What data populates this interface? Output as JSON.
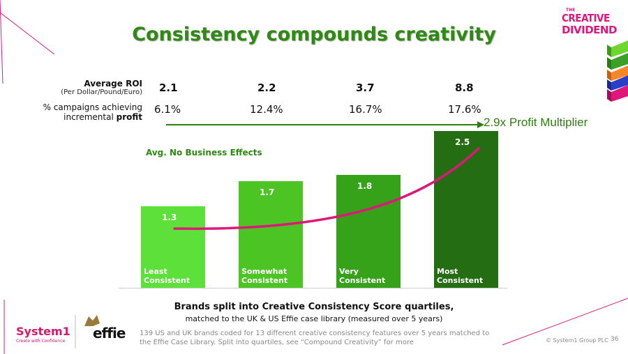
{
  "title": "Consistency compounds creativity",
  "logo": {
    "line1": "THE",
    "line2": "CREATIVE",
    "line3": "DIVIDEND"
  },
  "rows": {
    "roi_label": "Average ROI",
    "roi_sublabel": "(Per Dollar/Pound/Euro)",
    "profit_label_line1": "% campaigns achieving",
    "profit_label_line2_prefix": "incremental ",
    "profit_label_line2_bold": "profit",
    "roi_values": [
      "2.1",
      "2.2",
      "3.7",
      "8.8"
    ],
    "profit_values": [
      "6.1%",
      "12.4%",
      "16.7%",
      "17.6%"
    ]
  },
  "multiplier_label": "2.9x Profit Multiplier",
  "avg_label": "Avg. No Business Effects",
  "chart_data": {
    "type": "bar",
    "categories": [
      "Least\nConsistent",
      "Somewhat\nConsistent",
      "Very\nConsistent",
      "Most\nConsistent"
    ],
    "values": [
      1.3,
      1.7,
      1.8,
      2.5
    ],
    "value_labels": [
      "1.3",
      "1.7",
      "1.8",
      "2.5"
    ],
    "ylim": [
      0,
      2.7
    ],
    "bar_colors": [
      "#5ee03a",
      "#4cc424",
      "#36a21a",
      "#256d12"
    ],
    "trend_color": "#e0177a",
    "ylabel": "",
    "xlabel": ""
  },
  "caption_line1": "Brands split into Creative Consistency Score quartiles,",
  "caption_line2": "matched to the UK & US Effie case library (measured over 5 years)",
  "footnote": "139 US and UK brands coded for 13 different creative consistency features over 5 years matched to the Effie Case Library. Split into quartiles, see “Compound Creativity” for more",
  "footer": {
    "brand1": "System1",
    "brand1_tagline": "Create with Confidence",
    "brand2": "effie",
    "copyright": "© System1 Group PLC",
    "page_number": "36"
  },
  "colors": {
    "title_green": "#2f8a14",
    "accent_pink": "#e0177a"
  }
}
